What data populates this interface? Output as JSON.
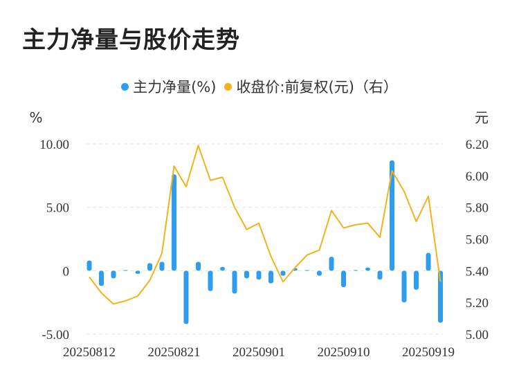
{
  "title": "主力净量与股价走势",
  "colors": {
    "bar": "#2e9df0",
    "line": "#f3b21b",
    "grid": "#e6e6e6"
  },
  "chart_data": {
    "type": "bar+line",
    "title": "主力净量与股价走势",
    "legend": [
      {
        "label": "主力净量(%)",
        "color": "#2e9df0"
      },
      {
        "label": "收盘价:前复权(元)（右）",
        "color": "#f3b21b"
      }
    ],
    "y_left": {
      "unit": "%",
      "ticks": [
        "10.00",
        "5.00",
        "0",
        "-5.00"
      ],
      "range": [
        -5,
        10
      ]
    },
    "y_right": {
      "unit": "元",
      "ticks": [
        "6.20",
        "6.00",
        "5.80",
        "5.60",
        "5.40",
        "5.20",
        "5.00"
      ],
      "range": [
        5.0,
        6.2
      ]
    },
    "x_ticks": [
      {
        "label": "20250812",
        "index": 0
      },
      {
        "label": "20250821",
        "index": 7
      },
      {
        "label": "20250901",
        "index": 14
      },
      {
        "label": "20250910",
        "index": 21
      },
      {
        "label": "20250919",
        "index": 28
      }
    ],
    "series": [
      {
        "name": "主力净量(%)",
        "type": "bar",
        "values": [
          0.8,
          -1.2,
          -0.6,
          0.05,
          -0.25,
          0.6,
          0.7,
          7.6,
          -4.2,
          0.7,
          -1.6,
          0.3,
          -1.8,
          -0.6,
          -0.7,
          -1.0,
          -0.4,
          0.2,
          0.05,
          -0.4,
          1.1,
          -1.3,
          0.05,
          0.25,
          -0.7,
          8.7,
          -2.5,
          -1.5,
          1.4,
          -4.1
        ]
      },
      {
        "name": "收盘价:前复权(元)（右）",
        "type": "line",
        "values": [
          5.36,
          5.26,
          5.19,
          5.21,
          5.24,
          5.34,
          5.51,
          6.06,
          5.93,
          6.19,
          5.97,
          5.99,
          5.8,
          5.66,
          5.7,
          5.49,
          5.33,
          5.42,
          5.5,
          5.53,
          5.78,
          5.67,
          5.69,
          5.7,
          5.61,
          6.03,
          5.9,
          5.71,
          5.87,
          5.33
        ]
      }
    ]
  }
}
